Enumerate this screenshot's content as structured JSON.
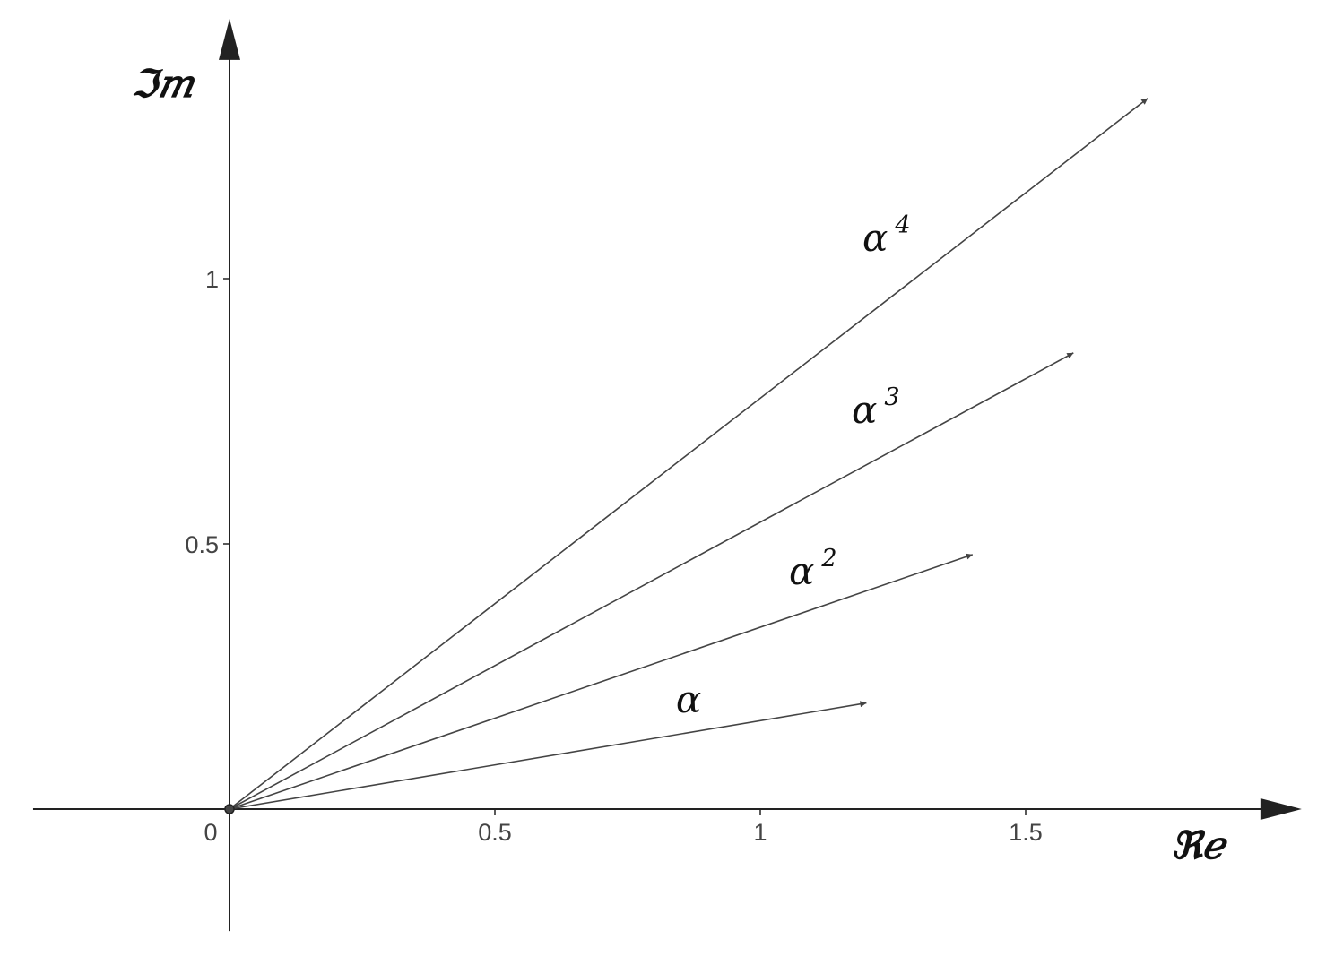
{
  "chart_data": {
    "type": "vector-diagram",
    "title": "",
    "xlabel": "ℜ𝑒",
    "ylabel": "ℑ𝑚",
    "x_axis_label": "Re",
    "y_axis_label": "Im",
    "xlim": [
      -0.37,
      2.02
    ],
    "ylim": [
      -0.23,
      1.49
    ],
    "x_ticks": [
      {
        "value": 0,
        "label": "0"
      },
      {
        "value": 0.5,
        "label": "0.5"
      },
      {
        "value": 1,
        "label": "1"
      },
      {
        "value": 1.5,
        "label": "1.5"
      }
    ],
    "y_ticks": [
      {
        "value": 0.5,
        "label": "0.5"
      },
      {
        "value": 1,
        "label": "1"
      }
    ],
    "origin": {
      "x": 0,
      "y": 0
    },
    "vectors": [
      {
        "name": "alpha",
        "base": "α",
        "exponent": "",
        "x": 1.2,
        "y": 0.2
      },
      {
        "name": "alpha^2",
        "base": "α",
        "exponent": "2",
        "x": 1.4,
        "y": 0.48
      },
      {
        "name": "alpha^3",
        "base": "α",
        "exponent": "3",
        "x": 1.59,
        "y": 0.86
      },
      {
        "name": "alpha^4",
        "base": "α",
        "exponent": "4",
        "x": 1.73,
        "y": 1.34
      }
    ],
    "grid": false,
    "colors": {
      "axis": "#222222",
      "vector": "#444444",
      "label": "#111111",
      "tick_text": "#444444"
    }
  }
}
